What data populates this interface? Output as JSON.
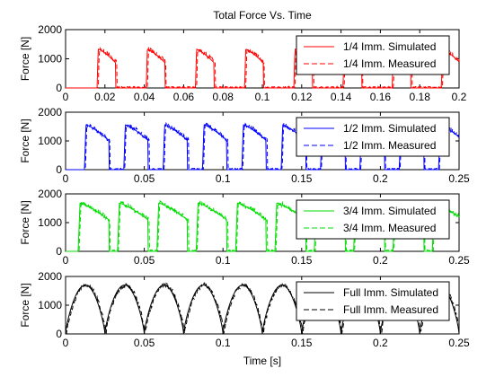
{
  "figure_title": "Total Force Vs. Time",
  "chart_data": [
    {
      "type": "line",
      "title": "Total Force Vs. Time",
      "xlabel": "",
      "ylabel": "Force [N]",
      "xlim": [
        0,
        0.2
      ],
      "ylim": [
        0,
        2000
      ],
      "xticks": [
        0,
        0.02,
        0.04,
        0.06,
        0.08,
        0.1,
        0.12,
        0.14,
        0.16,
        0.18,
        0.2
      ],
      "xtick_labels": [
        "0",
        "0.02",
        "0.04",
        "0.06",
        "0.08",
        "0.1",
        "0.12",
        "0.14",
        "0.16",
        "0.18",
        "0.2"
      ],
      "yticks": [
        0,
        1000,
        2000
      ],
      "ytick_labels": [
        "0",
        "1000",
        "2000"
      ],
      "color": "#ff0000",
      "legend_position": "top-right",
      "pulse_period": 0.025,
      "first_pulse_start": 0.016,
      "pulse_duration": 0.0095,
      "peak": 1330,
      "series": [
        {
          "name": "1/4 Imm. Simulated",
          "style": "solid"
        },
        {
          "name": "1/4 Imm. Measured",
          "style": "dashed"
        }
      ]
    },
    {
      "type": "line",
      "title": "",
      "xlabel": "",
      "ylabel": "Force [N]",
      "xlim": [
        0,
        0.25
      ],
      "ylim": [
        0,
        2000
      ],
      "xticks": [
        0,
        0.05,
        0.1,
        0.15,
        0.2,
        0.25
      ],
      "xtick_labels": [
        "0",
        "0.05",
        "0.1",
        "0.15",
        "0.2",
        "0.25"
      ],
      "yticks": [
        0,
        1000,
        2000
      ],
      "ytick_labels": [
        "0",
        "1000",
        "2000"
      ],
      "color": "#0000ff",
      "legend_position": "top-right",
      "pulse_period": 0.025,
      "first_pulse_start": 0.012,
      "pulse_duration": 0.0155,
      "peak": 1560,
      "series": [
        {
          "name": "1/2 Imm. Simulated",
          "style": "solid"
        },
        {
          "name": "1/2 Imm. Measured",
          "style": "dashed"
        }
      ]
    },
    {
      "type": "line",
      "title": "",
      "xlabel": "",
      "ylabel": "Force [N]",
      "xlim": [
        0,
        0.25
      ],
      "ylim": [
        0,
        2000
      ],
      "xticks": [
        0,
        0.05,
        0.1,
        0.15,
        0.2,
        0.25
      ],
      "xtick_labels": [
        "0",
        "0.05",
        "0.1",
        "0.15",
        "0.2",
        "0.25"
      ],
      "yticks": [
        0,
        1000,
        2000
      ],
      "ytick_labels": [
        "0",
        "1000",
        "2000"
      ],
      "color": "#00dd00",
      "legend_position": "top-right",
      "pulse_period": 0.025,
      "first_pulse_start": 0.008,
      "pulse_duration": 0.0195,
      "peak": 1680,
      "series": [
        {
          "name": "3/4 Imm. Simulated",
          "style": "solid"
        },
        {
          "name": "3/4 Imm. Measured",
          "style": "dashed"
        }
      ]
    },
    {
      "type": "line",
      "title": "",
      "xlabel": "Time [s]",
      "ylabel": "Force [N]",
      "xlim": [
        0,
        0.25
      ],
      "ylim": [
        0,
        2000
      ],
      "xticks": [
        0,
        0.05,
        0.1,
        0.15,
        0.2,
        0.25
      ],
      "xtick_labels": [
        "0",
        "0.05",
        "0.1",
        "0.15",
        "0.2",
        "0.25"
      ],
      "yticks": [
        0,
        1000,
        2000
      ],
      "ytick_labels": [
        "0",
        "1000",
        "2000"
      ],
      "color": "#000000",
      "legend_position": "top-right",
      "pulse_period": 0.025,
      "first_pulse_start": 0.0,
      "pulse_duration": 0.025,
      "peak": 1700,
      "series": [
        {
          "name": "Full Imm. Simulated",
          "style": "solid"
        },
        {
          "name": "Full Imm. Measured",
          "style": "dashed"
        }
      ]
    }
  ]
}
